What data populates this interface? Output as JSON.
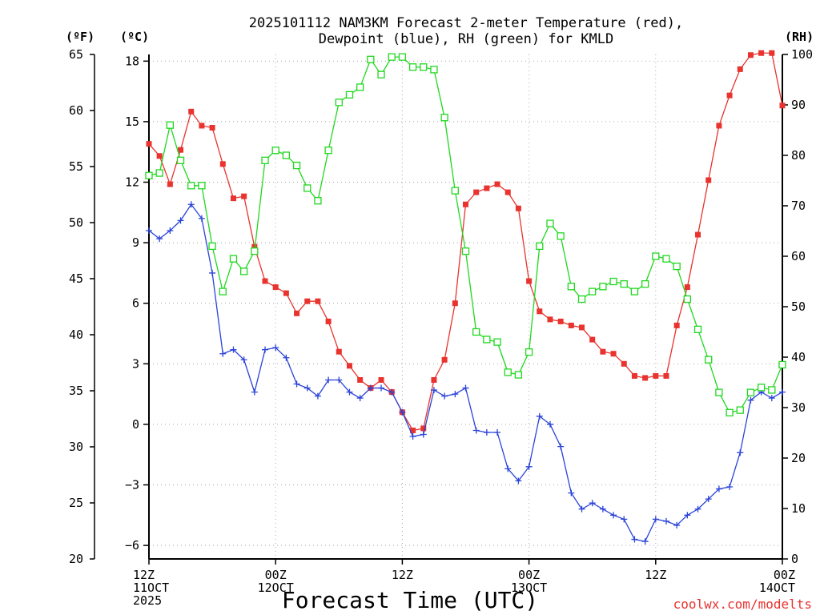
{
  "chart_data": {
    "type": "line",
    "title_line1": "2025101112 NAM3KM Forecast 2-meter Temperature (red),",
    "title_line2": "Dewpoint (blue), RH (green) for KMLD",
    "xlabel": "Forecast Time (UTC)",
    "credit": "coolwx.com/modelts",
    "units": {
      "fahrenheit": "(ºF)",
      "celsius": "(ºC)",
      "rh": "(RH)"
    },
    "x_range_hours": [
      0,
      60
    ],
    "y_range_celsius": [
      -6.67,
      18.33
    ],
    "y_range_fahrenheit": [
      20,
      65
    ],
    "y_range_rh": [
      0,
      100
    ],
    "celsius_ticks": [
      {
        "v": 18,
        "label": "18"
      },
      {
        "v": 15,
        "label": "15"
      },
      {
        "v": 12,
        "label": "12"
      },
      {
        "v": 9,
        "label": "9"
      },
      {
        "v": 6,
        "label": "6"
      },
      {
        "v": 3,
        "label": "3"
      },
      {
        "v": 0,
        "label": "0"
      },
      {
        "v": -3,
        "label": "−3"
      },
      {
        "v": -6,
        "label": "−6"
      }
    ],
    "fahrenheit_ticks": [
      {
        "v": 65,
        "label": "65"
      },
      {
        "v": 60,
        "label": "60"
      },
      {
        "v": 55,
        "label": "55"
      },
      {
        "v": 50,
        "label": "50"
      },
      {
        "v": 45,
        "label": "45"
      },
      {
        "v": 40,
        "label": "40"
      },
      {
        "v": 35,
        "label": "35"
      },
      {
        "v": 30,
        "label": "30"
      },
      {
        "v": 25,
        "label": "25"
      },
      {
        "v": 20,
        "label": "20"
      }
    ],
    "rh_ticks": [
      {
        "v": 100,
        "label": "100"
      },
      {
        "v": 90,
        "label": "90"
      },
      {
        "v": 80,
        "label": "80"
      },
      {
        "v": 70,
        "label": "70"
      },
      {
        "v": 60,
        "label": "60"
      },
      {
        "v": 50,
        "label": "50"
      },
      {
        "v": 40,
        "label": "40"
      },
      {
        "v": 30,
        "label": "30"
      },
      {
        "v": 20,
        "label": "20"
      },
      {
        "v": 10,
        "label": "10"
      },
      {
        "v": 0,
        "label": "0"
      }
    ],
    "x_ticks": [
      {
        "h": 0,
        "lines": [
          "12Z",
          "11OCT",
          "2025"
        ]
      },
      {
        "h": 12,
        "lines": [
          "00Z",
          "12OCT"
        ]
      },
      {
        "h": 24,
        "lines": [
          "12Z"
        ]
      },
      {
        "h": 36,
        "lines": [
          "00Z",
          "13OCT"
        ]
      },
      {
        "h": 48,
        "lines": [
          "12Z"
        ]
      },
      {
        "h": 60,
        "lines": [
          "00Z",
          "14OCT"
        ]
      }
    ],
    "series": [
      {
        "name": "2-meter Temperature",
        "unit": "C",
        "color": "#e8332e",
        "marker": "filled-square",
        "x": [
          0,
          1,
          2,
          3,
          4,
          5,
          6,
          7,
          8,
          9,
          10,
          11,
          12,
          13,
          14,
          15,
          16,
          17,
          18,
          19,
          20,
          21,
          22,
          23,
          24,
          25,
          26,
          27,
          28,
          29,
          30,
          31,
          32,
          33,
          34,
          35,
          36,
          37,
          38,
          39,
          40,
          41,
          42,
          43,
          44,
          45,
          46,
          47,
          48,
          49,
          50,
          51,
          52,
          53,
          54,
          55,
          56,
          57,
          58,
          59,
          60
        ],
        "values": [
          13.9,
          13.3,
          11.9,
          13.6,
          15.5,
          14.8,
          14.7,
          12.9,
          11.2,
          11.3,
          8.8,
          7.1,
          6.8,
          6.5,
          5.5,
          6.1,
          6.1,
          5.1,
          3.6,
          2.9,
          2.2,
          1.8,
          2.2,
          1.6,
          0.6,
          -0.3,
          -0.2,
          2.2,
          3.2,
          6.0,
          10.9,
          11.5,
          11.7,
          11.9,
          11.5,
          10.7,
          7.1,
          5.6,
          5.2,
          5.1,
          4.9,
          4.8,
          4.2,
          3.6,
          3.5,
          3.0,
          2.4,
          2.3,
          2.4,
          2.4,
          4.9,
          6.8,
          9.4,
          12.1,
          14.8,
          16.3,
          17.6,
          18.3,
          18.4,
          18.4,
          15.8
        ]
      },
      {
        "name": "Dewpoint",
        "unit": "C",
        "color": "#2a43d8",
        "marker": "plus",
        "x": [
          0,
          1,
          2,
          3,
          4,
          5,
          6,
          7,
          8,
          9,
          10,
          11,
          12,
          13,
          14,
          15,
          16,
          17,
          18,
          19,
          20,
          21,
          22,
          23,
          24,
          25,
          26,
          27,
          28,
          29,
          30,
          31,
          32,
          33,
          34,
          35,
          36,
          37,
          38,
          39,
          40,
          41,
          42,
          43,
          44,
          45,
          46,
          47,
          48,
          49,
          50,
          51,
          52,
          53,
          54,
          55,
          56,
          57,
          58,
          59,
          60
        ],
        "values": [
          9.6,
          9.2,
          9.6,
          10.1,
          10.9,
          10.2,
          7.5,
          3.5,
          3.7,
          3.2,
          1.6,
          3.7,
          3.8,
          3.3,
          2.0,
          1.8,
          1.4,
          2.2,
          2.2,
          1.6,
          1.3,
          1.8,
          1.8,
          1.6,
          0.6,
          -0.6,
          -0.5,
          1.7,
          1.4,
          1.5,
          1.8,
          -0.3,
          -0.4,
          -0.4,
          -2.2,
          -2.8,
          -2.1,
          0.4,
          0.0,
          -1.1,
          -3.4,
          -4.2,
          -3.9,
          -4.2,
          -4.5,
          -4.7,
          -5.7,
          -5.8,
          -4.7,
          -4.8,
          -5.0,
          -4.5,
          -4.2,
          -3.7,
          -3.2,
          -3.1,
          -1.4,
          1.2,
          1.6,
          1.3,
          1.6
        ]
      },
      {
        "name": "RH",
        "unit": "%",
        "color": "#1fd81f",
        "marker": "open-square",
        "x": [
          0,
          1,
          2,
          3,
          4,
          5,
          6,
          7,
          8,
          9,
          10,
          11,
          12,
          13,
          14,
          15,
          16,
          17,
          18,
          19,
          20,
          21,
          22,
          23,
          24,
          25,
          26,
          27,
          28,
          29,
          30,
          31,
          32,
          33,
          34,
          35,
          36,
          37,
          38,
          39,
          40,
          41,
          42,
          43,
          44,
          45,
          46,
          47,
          48,
          49,
          50,
          51,
          52,
          53,
          54,
          55,
          56,
          57,
          58,
          59,
          60
        ],
        "values": [
          76,
          76.5,
          86,
          79,
          74,
          74,
          62,
          53,
          59.5,
          57,
          61,
          79,
          81,
          80,
          78,
          73.5,
          71,
          81,
          90.5,
          92,
          93.5,
          99,
          96,
          99.5,
          99.5,
          97.5,
          97.5,
          97,
          87.5,
          73,
          61,
          45,
          43.5,
          43,
          37,
          36.5,
          41,
          62,
          66.5,
          64,
          54,
          51.5,
          53,
          54,
          55,
          54.5,
          53,
          54.5,
          60,
          59.5,
          58,
          51.5,
          45.5,
          39.5,
          33,
          29,
          29.5,
          33,
          34,
          33.5,
          38.5
        ]
      }
    ]
  }
}
